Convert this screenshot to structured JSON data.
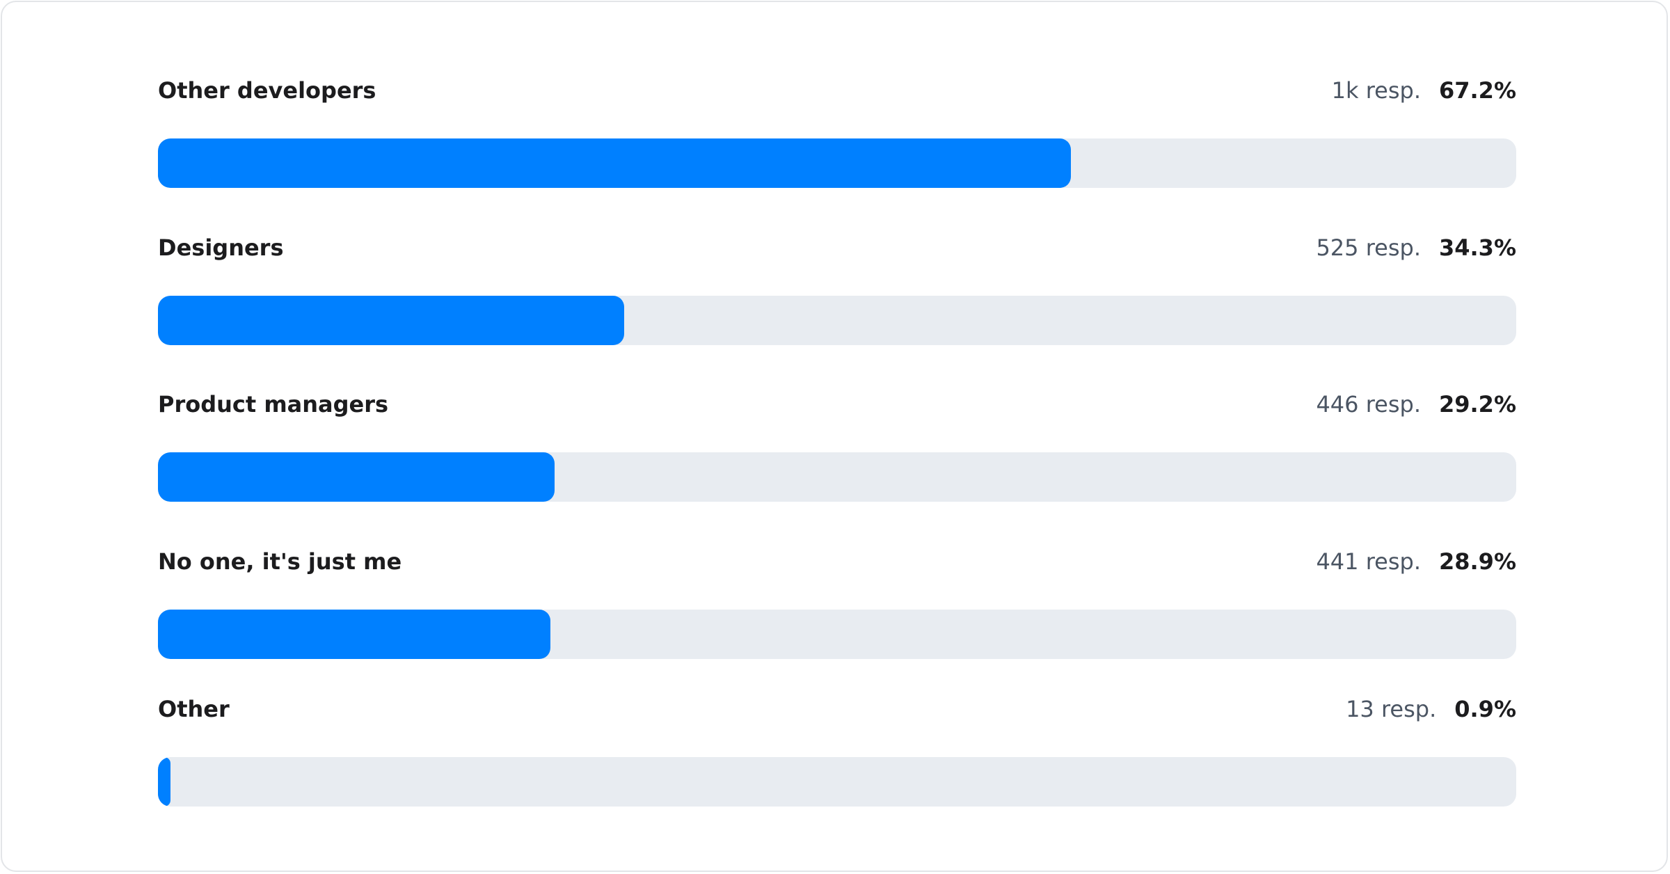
{
  "chart_data": {
    "type": "bar",
    "orientation": "horizontal",
    "bar_color": "#0080ff",
    "track_color": "#e8ecf1",
    "categories": [
      "Other developers",
      "Designers",
      "Product managers",
      "No one, it's just me",
      "Other"
    ],
    "responses_text": [
      "1k resp.",
      "525 resp.",
      "446 resp.",
      "441 resp.",
      "13 resp."
    ],
    "percent_text": [
      "67.2%",
      "34.3%",
      "29.2%",
      "28.9%",
      "0.9%"
    ],
    "values": [
      67.2,
      34.3,
      29.2,
      28.9,
      0.9
    ],
    "xlim": [
      0,
      100
    ]
  }
}
